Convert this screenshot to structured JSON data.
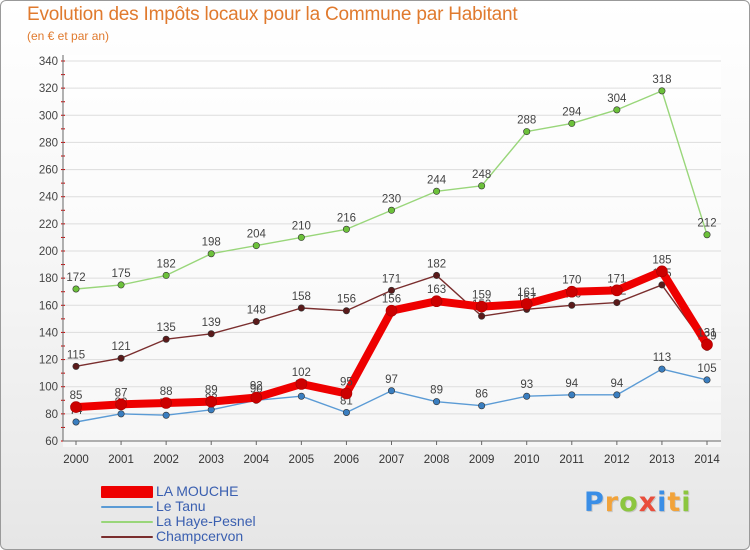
{
  "header": {
    "title": "Evolution des Impôts locaux pour la Commune par Habitant",
    "subtitle": "(en € et par an)"
  },
  "logo": {
    "letters": [
      "P",
      "r",
      "o",
      "x",
      "i",
      "t",
      "i"
    ]
  },
  "colors": {
    "title": "#e07a2e",
    "axis": "#555555",
    "grid": "#dddddd",
    "legend_text": "#3a5fb0",
    "tick_marks": "#cc0000"
  },
  "chart_data": {
    "type": "line",
    "title": "Evolution des Impôts locaux pour la Commune par Habitant",
    "subtitle": "(en € et par an)",
    "xlabel": "",
    "ylabel": "",
    "x": [
      "2000",
      "2001",
      "2002",
      "2003",
      "2004",
      "2005",
      "2006",
      "2007",
      "2008",
      "2009",
      "2010",
      "2011",
      "2012",
      "2013",
      "2014"
    ],
    "ylim": [
      60,
      340
    ],
    "yticks": [
      60,
      80,
      100,
      120,
      140,
      160,
      180,
      200,
      220,
      240,
      260,
      280,
      300,
      320,
      340
    ],
    "grid": "horizontal",
    "legend_position": "bottom-left",
    "series": [
      {
        "name": "Champcervon",
        "color": "#7a2e2e",
        "marker": "#5a1a1a",
        "values": [
          115,
          121,
          135,
          139,
          148,
          158,
          156,
          171,
          182,
          152,
          157,
          160,
          162,
          175,
          129
        ],
        "labels": [
          "115",
          "121",
          "135",
          "139",
          "148",
          "158",
          "156",
          "171",
          "182",
          "152",
          "157",
          "160",
          "162",
          "175",
          "129"
        ]
      },
      {
        "name": "Le Tanu",
        "color": "#5b9bd5",
        "marker": "#3a7ec0",
        "values": [
          74,
          80,
          79,
          83,
          90,
          93,
          81,
          97,
          89,
          86,
          93,
          94,
          94,
          113,
          105
        ],
        "labels": [
          "74",
          "80",
          "79",
          "83",
          "90",
          "93",
          "81",
          "97",
          "89",
          "86",
          "93",
          "94",
          "94",
          "113",
          "105"
        ]
      },
      {
        "name": "La Haye-Pesnel",
        "color": "#99d67a",
        "marker": "#6cc13a",
        "values": [
          172,
          175,
          182,
          198,
          204,
          210,
          216,
          230,
          244,
          248,
          288,
          294,
          304,
          318,
          212
        ],
        "labels": [
          "172",
          "175",
          "182",
          "198",
          "204",
          "210",
          "216",
          "230",
          "244",
          "248",
          "288",
          "294",
          "304",
          "318",
          "212"
        ]
      },
      {
        "name": "LA MOUCHE",
        "color": "#ee0000",
        "marker": "#cc0000",
        "values": [
          85,
          87,
          88,
          89,
          92,
          102,
          95,
          156,
          163,
          159,
          161,
          170,
          171,
          185,
          131
        ],
        "labels": [
          "85",
          "87",
          "88",
          "89",
          "92",
          "102",
          "95",
          "156",
          "163",
          "159",
          "161",
          "170",
          "171",
          "185",
          "131"
        ]
      }
    ]
  }
}
